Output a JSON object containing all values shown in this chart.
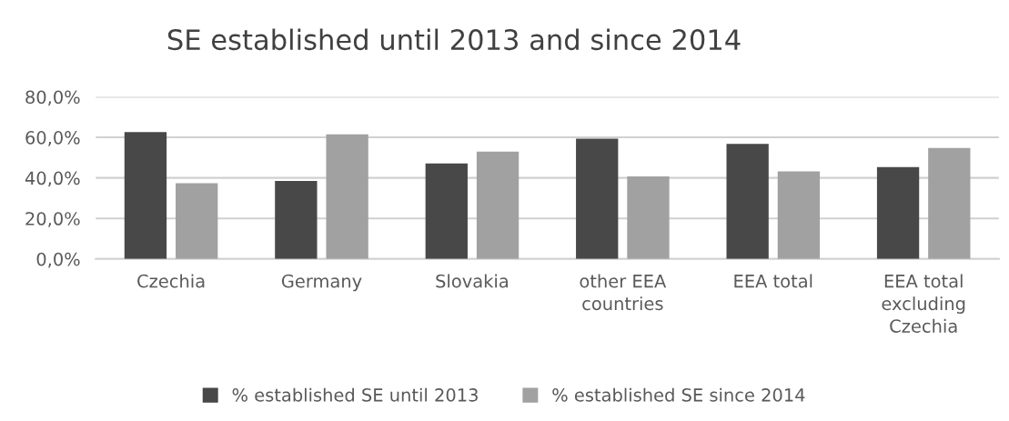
{
  "chart_data": {
    "type": "bar",
    "title": "SE established until 2013 and since 2014",
    "categories": [
      "Czechia",
      "Germany",
      "Slovakia",
      "other EEA\ncountries",
      "EEA total",
      "EEA total\nexcluding\nCzechia"
    ],
    "series": [
      {
        "name": "% established SE until 2013",
        "color": "#484848",
        "values": [
          62.6,
          38.5,
          47.1,
          59.3,
          56.8,
          45.3
        ]
      },
      {
        "name": "% established SE since 2014",
        "color": "#a1a1a1",
        "values": [
          37.4,
          61.5,
          52.9,
          40.7,
          43.2,
          54.7
        ]
      }
    ],
    "ylim": [
      0,
      80
    ],
    "yticks": [
      {
        "value": 0,
        "label": "0,0%"
      },
      {
        "value": 20,
        "label": "20,0%"
      },
      {
        "value": 40,
        "label": "40,0%"
      },
      {
        "value": 60,
        "label": "60,0%"
      },
      {
        "value": 80,
        "label": "80,0%"
      }
    ],
    "grid": "y",
    "legend": "bottom"
  }
}
